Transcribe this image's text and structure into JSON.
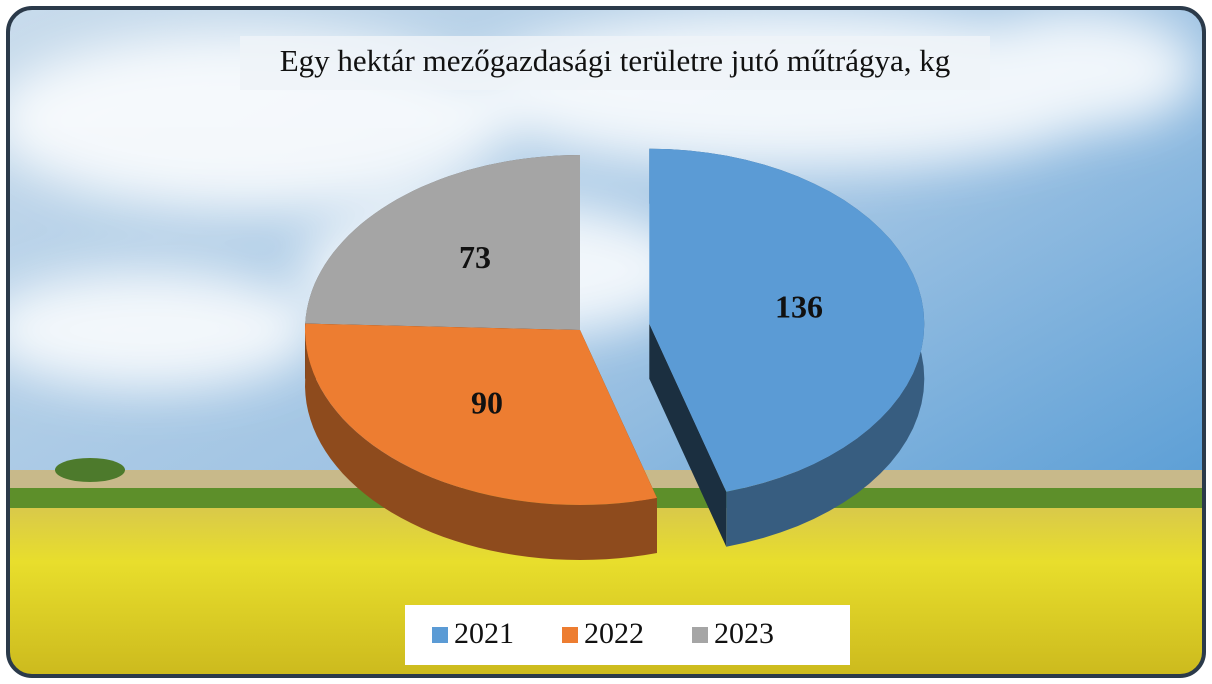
{
  "chart_data": {
    "type": "pie",
    "title": "Egy hektár mezőgazdasági területre jutó műtrágya, kg",
    "categories": [
      "2021",
      "2022",
      "2023"
    ],
    "values": [
      136,
      90,
      73
    ],
    "colors": [
      "#5b9bd5",
      "#ed7d31",
      "#a5a5a5"
    ],
    "legend": "bottom",
    "exploded": [
      0
    ]
  }
}
